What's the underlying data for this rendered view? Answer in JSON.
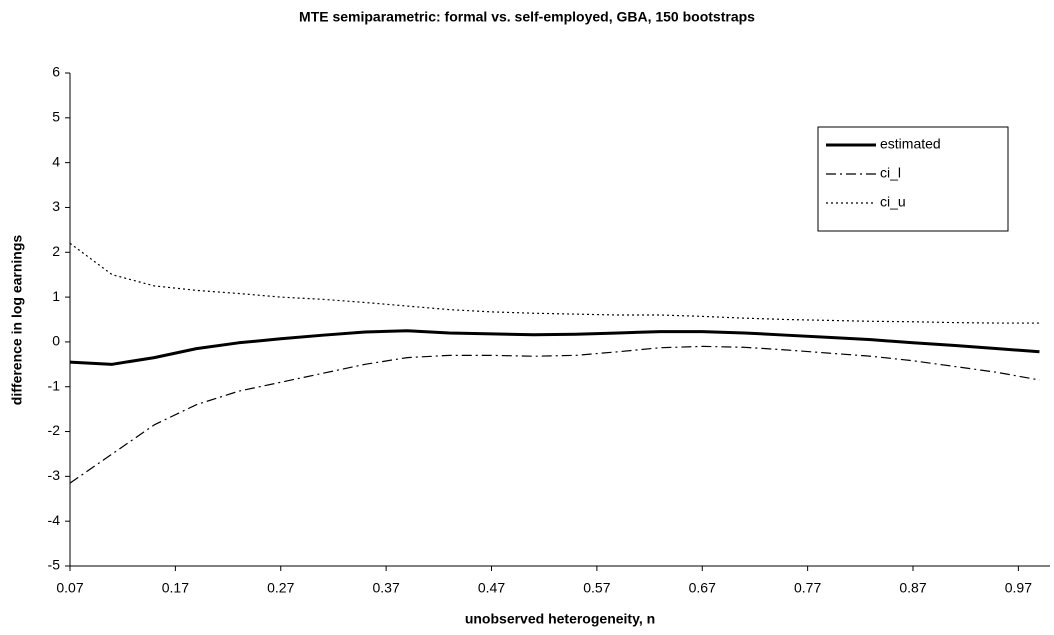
{
  "chart_data": {
    "type": "line",
    "title": "MTE semiparametric: formal vs. self-employed, GBA, 150 bootstraps",
    "xlabel": "unobserved heterogeneity, n",
    "ylabel": "difference in log earnings",
    "x": [
      0.07,
      0.11,
      0.15,
      0.19,
      0.23,
      0.27,
      0.31,
      0.35,
      0.39,
      0.43,
      0.47,
      0.51,
      0.55,
      0.59,
      0.63,
      0.67,
      0.71,
      0.75,
      0.79,
      0.83,
      0.87,
      0.91,
      0.95,
      0.99
    ],
    "series": [
      {
        "name": "estimated",
        "color": "#000000",
        "dash": "solid",
        "values": [
          -0.45,
          -0.5,
          -0.35,
          -0.15,
          -0.02,
          0.07,
          0.15,
          0.22,
          0.25,
          0.2,
          0.18,
          0.16,
          0.17,
          0.2,
          0.23,
          0.23,
          0.2,
          0.15,
          0.1,
          0.05,
          -0.02,
          -0.08,
          -0.15,
          -0.22
        ]
      },
      {
        "name": "ci_l",
        "color": "#000000",
        "dash": "dash-dot",
        "values": [
          -3.15,
          -2.5,
          -1.85,
          -1.4,
          -1.1,
          -0.9,
          -0.7,
          -0.5,
          -0.35,
          -0.3,
          -0.3,
          -0.32,
          -0.3,
          -0.22,
          -0.13,
          -0.1,
          -0.12,
          -0.18,
          -0.25,
          -0.32,
          -0.42,
          -0.55,
          -0.68,
          -0.85
        ]
      },
      {
        "name": "ci_u",
        "color": "#000000",
        "dash": "dot",
        "values": [
          2.2,
          1.5,
          1.25,
          1.15,
          1.08,
          1.0,
          0.95,
          0.88,
          0.8,
          0.72,
          0.67,
          0.64,
          0.62,
          0.6,
          0.6,
          0.57,
          0.53,
          0.5,
          0.48,
          0.46,
          0.45,
          0.43,
          0.42,
          0.42
        ]
      }
    ],
    "xlim": [
      0.07,
      1.0
    ],
    "xticks": [
      0.07,
      0.17,
      0.27,
      0.37,
      0.47,
      0.57,
      0.67,
      0.77,
      0.87,
      0.97
    ],
    "ylim": [
      -5,
      6
    ],
    "yticks": [
      -5,
      -4,
      -3,
      -2,
      -1,
      0,
      1,
      2,
      3,
      4,
      5,
      6
    ],
    "grid": false,
    "legend": "top-right"
  }
}
